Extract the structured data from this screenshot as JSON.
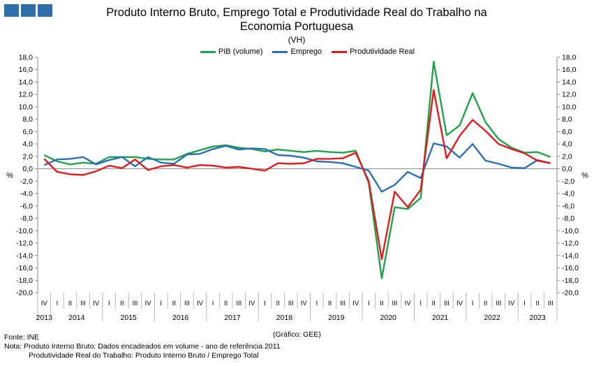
{
  "header": {
    "title_line1": "Produto Interno Bruto, Emprego Total e Produtividade Real do Trabalho na",
    "title_line2": "Economia Portuguesa",
    "subtitle": "(VH)"
  },
  "chart_data": {
    "type": "line",
    "title": "Produto Interno Bruto, Emprego Total e Produtividade Real do Trabalho na Economia Portuguesa",
    "subtitle": "(VH)",
    "ylabel_left": "%",
    "ylabel_right": "%",
    "ylim": [
      -20,
      18
    ],
    "yticks": [
      18,
      16,
      14,
      12,
      10,
      8,
      6,
      4,
      2,
      0,
      -2,
      -4,
      -6,
      -8,
      -10,
      -12,
      -14,
      -16,
      -18,
      -20
    ],
    "ytick_labels": [
      "18,0",
      "16,0",
      "14,0",
      "12,0",
      "10,0",
      "8,0",
      "6,0",
      "4,0",
      "2,0",
      "0,0",
      "-2,0",
      "-4,0",
      "-6,0",
      "-8,0",
      "-10,0",
      "-12,0",
      "-14,0",
      "-16,0",
      "-18,0",
      "-20,0"
    ],
    "quarters": [
      "IV",
      "I",
      "II",
      "III",
      "IV",
      "I",
      "II",
      "III",
      "IV",
      "I",
      "II",
      "III",
      "IV",
      "I",
      "II",
      "III",
      "IV",
      "I",
      "II",
      "III",
      "IV",
      "I",
      "II",
      "III",
      "IV",
      "I",
      "II",
      "III",
      "IV",
      "I",
      "II",
      "III",
      "IV",
      "I",
      "II",
      "III",
      "IV",
      "I",
      "II",
      "III"
    ],
    "years": [
      {
        "label": "2013",
        "start": 0,
        "end": 0
      },
      {
        "label": "2014",
        "start": 1,
        "end": 4
      },
      {
        "label": "2015",
        "start": 5,
        "end": 8
      },
      {
        "label": "2016",
        "start": 9,
        "end": 12
      },
      {
        "label": "2017",
        "start": 13,
        "end": 16
      },
      {
        "label": "2018",
        "start": 17,
        "end": 20
      },
      {
        "label": "2019",
        "start": 21,
        "end": 24
      },
      {
        "label": "2020",
        "start": 25,
        "end": 28
      },
      {
        "label": "2021",
        "start": 29,
        "end": 32
      },
      {
        "label": "2022",
        "start": 33,
        "end": 36
      },
      {
        "label": "2023",
        "start": 37,
        "end": 39
      }
    ],
    "legend_position": "top",
    "grid": false,
    "series": [
      {
        "name": "PIB (volume)",
        "color": "#1fa34a",
        "values": [
          2.2,
          1.2,
          0.7,
          1.0,
          0.8,
          1.9,
          1.9,
          1.9,
          1.6,
          1.5,
          1.5,
          2.4,
          3.0,
          3.6,
          3.8,
          3.4,
          3.2,
          2.8,
          3.1,
          2.9,
          2.7,
          2.9,
          2.7,
          2.6,
          2.9,
          -2.3,
          -17.7,
          -6.2,
          -6.5,
          -4.7,
          17.3,
          5.4,
          7.0,
          12.2,
          7.5,
          4.8,
          3.4,
          2.6,
          2.7,
          1.9
        ]
      },
      {
        "name": "Emprego",
        "color": "#2a6fb5",
        "values": [
          0.6,
          1.5,
          1.6,
          1.9,
          0.7,
          1.4,
          1.9,
          0.4,
          1.9,
          1.0,
          0.8,
          2.3,
          2.4,
          3.2,
          3.7,
          3.1,
          3.3,
          3.2,
          2.2,
          2.1,
          1.8,
          1.2,
          1.1,
          0.9,
          0.3,
          -0.3,
          -3.7,
          -2.6,
          -0.5,
          -1.5,
          4.1,
          3.6,
          1.8,
          4.0,
          1.3,
          0.8,
          0.2,
          0.1,
          1.4,
          0.9
        ]
      },
      {
        "name": "Produtividade Real",
        "color": "#e31a1c",
        "values": [
          1.6,
          -0.5,
          -0.9,
          -1.0,
          -0.4,
          0.5,
          0.1,
          1.5,
          -0.2,
          0.4,
          0.6,
          0.2,
          0.6,
          0.5,
          0.2,
          0.3,
          0.0,
          -0.3,
          0.9,
          0.8,
          0.9,
          1.6,
          1.6,
          1.7,
          2.6,
          -2.0,
          -14.6,
          -3.7,
          -6.2,
          -3.4,
          12.7,
          1.7,
          5.3,
          7.9,
          6.1,
          4.0,
          3.2,
          2.5,
          1.3,
          0.9
        ]
      }
    ]
  },
  "footer": {
    "source": "Fonte: INE",
    "grafico": "(Gráfico: GEE)",
    "note_line1": "Nota: Produto Interno Bruto: Dados encadeados em volume - ano de referência 2011",
    "note_line2": "Produtividade Real do Trabalho: Produto Interno Bruto / Emprego Total"
  }
}
